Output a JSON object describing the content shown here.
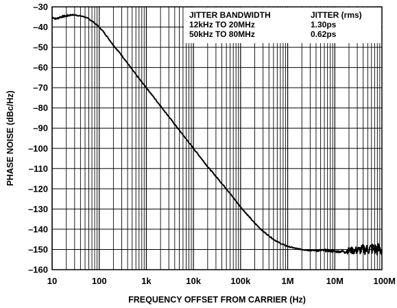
{
  "chart_data": {
    "type": "line",
    "xlabel": "FREQUENCY OFFSET FROM CARRIER (Hz)",
    "ylabel": "PHASE NOISE (dBc/Hz)",
    "xscale": "log",
    "xlim": [
      10,
      100000000
    ],
    "ylim": [
      -160,
      -30
    ],
    "grid": true,
    "x_tick_labels": [
      "10",
      "100",
      "1k",
      "10k",
      "100k",
      "1M",
      "10M",
      "100M"
    ],
    "y_tick_labels": [
      "–30",
      "–40",
      "–50",
      "–60",
      "–70",
      "–80",
      "–90",
      "–100",
      "–110",
      "–120",
      "–130",
      "–140",
      "–150",
      "–160"
    ],
    "legend_table": {
      "placement": "top-right",
      "headers": [
        "JITTER BANDWIDTH",
        "JITTER (rms)"
      ],
      "rows": [
        [
          "12kHz TO 20MHz",
          "1.30ps"
        ],
        [
          "50kHz TO 80MHz",
          "0.62ps"
        ]
      ]
    },
    "series": [
      {
        "x": [
          10,
          12,
          15,
          20,
          25,
          30,
          40,
          50,
          60,
          70,
          80,
          100,
          120,
          150,
          200,
          300,
          500,
          700,
          1000,
          2000,
          5000,
          10000,
          20000,
          50000,
          100000,
          200000,
          300000,
          500000,
          700000,
          1000000,
          1500000,
          2000000,
          3000000,
          5000000,
          7000000,
          10000000,
          15000000,
          20000000,
          30000000,
          40000000,
          50000000,
          60000000,
          70000000,
          80000000,
          90000000,
          100000000
        ],
        "y": [
          -35,
          -36,
          -35,
          -34.5,
          -34,
          -34,
          -34.5,
          -35,
          -36,
          -37,
          -38,
          -40,
          -42,
          -45,
          -49,
          -54,
          -61,
          -65.5,
          -70,
          -79,
          -91,
          -100,
          -109,
          -120,
          -129,
          -137,
          -141,
          -145,
          -147,
          -148.5,
          -149.5,
          -150,
          -150.5,
          -150.5,
          -150.5,
          -151,
          -151,
          -150.5,
          -150.5,
          -150,
          -150,
          -149.5,
          -150,
          -150,
          -150,
          -150
        ]
      }
    ]
  }
}
